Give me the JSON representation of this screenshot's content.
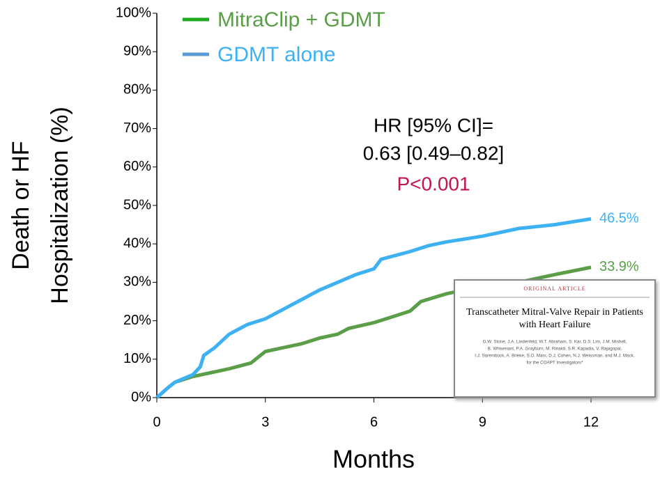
{
  "chart_data": {
    "type": "line",
    "y_label": [
      "Death or  HF",
      "Hospitalization (%)"
    ],
    "x_label": "Months",
    "xlim": [
      0,
      12
    ],
    "xticks": [
      0,
      3,
      6,
      9,
      12
    ],
    "ylim": [
      0,
      100
    ],
    "yticks": [
      {
        "value": 0,
        "label": "0%"
      },
      {
        "value": 10,
        "label": "10%"
      },
      {
        "value": 20,
        "label": "20%"
      },
      {
        "value": 30,
        "label": "30%"
      },
      {
        "value": 40,
        "label": "40%"
      },
      {
        "value": 50,
        "label": "50%"
      },
      {
        "value": 60,
        "label": "60%"
      },
      {
        "value": 70,
        "label": "70%"
      },
      {
        "value": 80,
        "label": "80%"
      },
      {
        "value": 90,
        "label": "90%"
      },
      {
        "value": 100,
        "label": "100%"
      }
    ],
    "series": [
      {
        "name": "MitraClip + GDMT",
        "color": "#5a9e48",
        "legend_color": "#22aa22",
        "x": [
          0,
          0.3,
          0.5,
          1,
          1.5,
          2,
          2.6,
          3,
          3.5,
          4,
          4.5,
          5,
          5.3,
          6,
          6.5,
          7,
          7.3,
          8,
          8.5,
          9,
          10,
          11,
          12
        ],
        "values": [
          0,
          2.5,
          4,
          5.5,
          6.5,
          7.5,
          9,
          12,
          13,
          14,
          15.5,
          16.5,
          18,
          19.5,
          21,
          22.5,
          25,
          27,
          28,
          28.5,
          30,
          32,
          33.9
        ],
        "value_labels": [
          null,
          null,
          null,
          null,
          null,
          null,
          null,
          null,
          null,
          null,
          null,
          null,
          null,
          null,
          null,
          null,
          null,
          null,
          null,
          null,
          null,
          null,
          "33.9%"
        ]
      },
      {
        "name": "GDMT alone",
        "color": "#3db1f2",
        "legend_color": "#5b9bd5",
        "x": [
          0,
          0.3,
          0.5,
          1,
          1.2,
          1.3,
          1.6,
          2,
          2.5,
          3,
          3.5,
          4,
          4.5,
          5,
          5.5,
          6,
          6.2,
          7,
          7.5,
          8,
          9,
          10,
          11,
          12
        ],
        "values": [
          0,
          2.5,
          4,
          6,
          8,
          11,
          13,
          16.5,
          19,
          20.5,
          23,
          25.5,
          28,
          30,
          32,
          33.5,
          36,
          38,
          39.5,
          40.5,
          42,
          44,
          45,
          46.5
        ],
        "value_labels": [
          null,
          null,
          null,
          null,
          null,
          null,
          null,
          null,
          null,
          null,
          null,
          null,
          null,
          null,
          null,
          null,
          null,
          null,
          null,
          null,
          null,
          null,
          null,
          "46.5%"
        ]
      }
    ],
    "annotations": [
      "HR [95% CI]=",
      "0.63 [0.49–0.82]",
      "P<0.001"
    ]
  },
  "inset": {
    "header": "ORIGINAL ARTICLE",
    "title": [
      "Transcatheter Mitral-Valve Repair in Patients",
      "with Heart Failure"
    ],
    "authors": [
      "G.W. Stone, J.A. Lindenfeld, W.T. Abraham, S. Kar, D.S. Lim, J.M. Mishell,",
      "B. Whisenant, P.A. Grayburn, M. Rinaldi, S.R. Kapadia, V. Rajagopal,",
      "I.J. Sarembock, A. Brieke, S.O. Marx, D.J. Cohen, N.J. Weissman, and M.J. Mack,",
      "for the COAPT Investigators*"
    ]
  }
}
